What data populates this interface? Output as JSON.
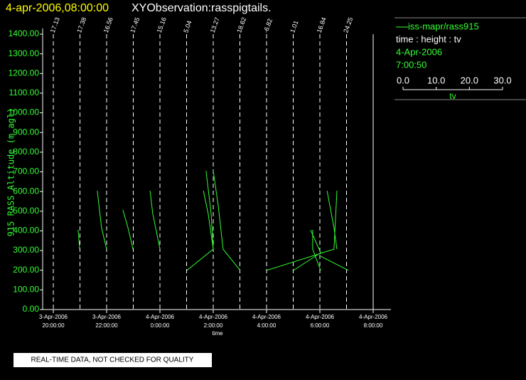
{
  "chart_data": {
    "type": "profile",
    "title": "4-apr-2006,08:00:00",
    "subtitle": "XYObservation:rasspigtails.",
    "y_label": "915 RASS Altitude (m agl)",
    "x_label": "time",
    "footer": "REAL-TIME DATA, NOT CHECKED FOR QUALITY",
    "ylim": [
      0,
      1400
    ],
    "yticks": [
      {
        "value": 0,
        "label": "0.00"
      },
      {
        "value": 100,
        "label": "100.00"
      },
      {
        "value": 200,
        "label": "200.00"
      },
      {
        "value": 300,
        "label": "300.00"
      },
      {
        "value": 400,
        "label": "400.00"
      },
      {
        "value": 500,
        "label": "500.00"
      },
      {
        "value": 600,
        "label": "600.00"
      },
      {
        "value": 700,
        "label": "700.00"
      },
      {
        "value": 800,
        "label": "800.00"
      },
      {
        "value": 900,
        "label": "900.00"
      },
      {
        "value": 1000,
        "label": "1000.00"
      },
      {
        "value": 1100,
        "label": "1100.00"
      },
      {
        "value": 1200,
        "label": "1200.00"
      },
      {
        "value": 1300,
        "label": "1300.00"
      },
      {
        "value": 1400,
        "label": "1400.00"
      }
    ],
    "xlim": [
      19.6,
      32.67
    ],
    "xticks": [
      {
        "value": 20,
        "label": "3-Apr-2006"
      },
      {
        "value": 22,
        "label": "3-Apr-2006"
      },
      {
        "value": 24,
        "label": "4-Apr-2006"
      },
      {
        "value": 26,
        "label": "4-Apr-2006"
      },
      {
        "value": 28,
        "label": "4-Apr-2006"
      },
      {
        "value": 30,
        "label": "4-Apr-2006"
      },
      {
        "value": 32,
        "label": "4-Apr-2006"
      }
    ],
    "xtick_times": [
      "20:00:00",
      "22:00:00",
      "0:00:00",
      "2:00:00",
      "4:00:00",
      "6:00:00",
      "8:00:00"
    ],
    "profile_times": [
      20,
      21,
      22,
      23,
      24,
      25,
      26,
      27,
      28,
      29,
      30,
      31
    ],
    "profile_labels": [
      "17.13",
      "17.38",
      "16.56",
      "17.45",
      "15.16",
      "5.04",
      "13.27",
      "18.62",
      "-6.82",
      "1.01",
      "16.84",
      "24.25"
    ],
    "end_line": 32,
    "series": [
      {
        "name": "iss-mapr/rass915",
        "color": "#33ff33",
        "x": [
          20.93,
          20.99,
          null,
          21.65,
          21.81,
          22.0,
          null,
          22.61,
          22.8,
          22.99,
          null,
          23.63,
          23.73,
          24.0,
          null,
          25.01,
          26.0,
          25.92,
          25.73,
          null,
          25.63,
          25.81,
          26.0,
          null,
          26.0,
          26.19,
          26.37,
          27.01,
          null,
          28.0,
          30.53,
          30.64,
          null,
          29.01,
          30.03,
          29.65,
          null,
          29.73,
          29.73,
          30.03,
          null,
          30.27,
          30.53,
          30.64,
          null,
          30.03,
          31.07
        ],
        "values": [
          405,
          307,
          null,
          604,
          416,
          307,
          null,
          507,
          416,
          307,
          null,
          604,
          488,
          307,
          null,
          199,
          307,
          488,
          705,
          null,
          604,
          488,
          307,
          null,
          705,
          525,
          307,
          199,
          null,
          199,
          307,
          604,
          null,
          199,
          289,
          405,
          null,
          405,
          307,
          199,
          null,
          604,
          416,
          307,
          null,
          271,
          199
        ]
      }
    ],
    "legend_info": [
      "time : height : tv",
      "4-Apr-2006",
      "7:00:50"
    ],
    "tv_scale": {
      "lim": [
        0,
        30
      ],
      "ticks": [
        {
          "value": 0,
          "label": "0.0"
        },
        {
          "value": 10,
          "label": "10.0"
        },
        {
          "value": 20,
          "label": "20.0"
        },
        {
          "value": 30,
          "label": "30.0"
        }
      ],
      "label": "tv"
    }
  }
}
